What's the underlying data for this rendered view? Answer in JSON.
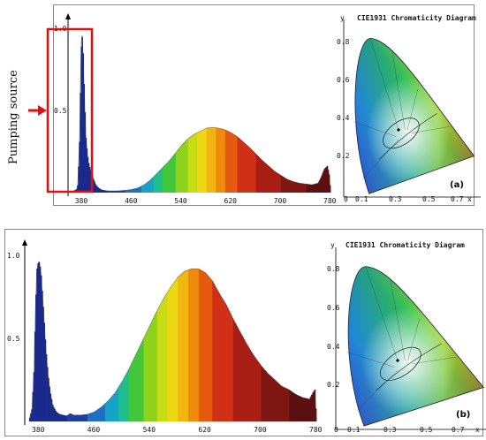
{
  "side_label": "Pumping source",
  "colors": {
    "pump_box": "#e01010",
    "arrow": "#e01010",
    "pump_band": "#1b2a8c"
  },
  "chart_data": [
    {
      "type": "area",
      "panel": "(a)",
      "x_ticks": [
        380,
        460,
        540,
        620,
        700,
        780
      ],
      "y_ticks": [
        "1.0",
        "0.5"
      ],
      "xlim": [
        366,
        780
      ],
      "ylim": [
        0,
        1.05
      ],
      "series": [
        {
          "x": [
            366,
            371,
            373,
            374,
            376,
            377,
            378,
            379,
            380,
            381,
            382,
            383,
            385,
            386,
            388,
            390,
            393,
            396,
            398,
            400,
            402,
            405,
            410,
            415,
            420,
            430,
            440,
            450,
            460,
            470,
            480,
            490,
            500,
            510,
            520,
            530,
            540,
            550,
            560,
            570,
            580,
            590,
            600,
            610,
            620,
            630,
            640,
            650,
            660,
            670,
            680,
            690,
            700,
            710,
            720,
            730,
            740,
            750,
            760,
            765,
            770,
            775,
            778,
            780
          ],
          "y": [
            0.01,
            0.02,
            0.05,
            0.14,
            0.35,
            0.58,
            0.8,
            0.97,
            1.0,
            0.96,
            0.86,
            0.72,
            0.48,
            0.36,
            0.27,
            0.2,
            0.15,
            0.12,
            0.09,
            0.07,
            0.05,
            0.035,
            0.02,
            0.015,
            0.012,
            0.011,
            0.012,
            0.015,
            0.02,
            0.03,
            0.05,
            0.08,
            0.12,
            0.16,
            0.2,
            0.25,
            0.3,
            0.34,
            0.37,
            0.39,
            0.41,
            0.415,
            0.41,
            0.4,
            0.38,
            0.355,
            0.32,
            0.285,
            0.245,
            0.205,
            0.17,
            0.135,
            0.11,
            0.085,
            0.07,
            0.06,
            0.055,
            0.05,
            0.06,
            0.1,
            0.15,
            0.17,
            0.11,
            0.01
          ]
        }
      ],
      "annotation": "Pumping source"
    },
    {
      "type": "area",
      "panel": "(b)",
      "x_ticks": [
        380,
        460,
        540,
        620,
        700,
        780
      ],
      "y_ticks": [
        "1.0",
        "0.5"
      ],
      "xlim": [
        366,
        780
      ],
      "ylim": [
        0,
        1.05
      ],
      "series": [
        {
          "x": [
            366,
            370,
            373,
            375,
            377,
            379,
            380,
            381,
            383,
            385,
            388,
            390,
            393,
            396,
            400,
            405,
            410,
            415,
            420,
            425,
            430,
            440,
            450,
            460,
            470,
            480,
            490,
            500,
            510,
            520,
            530,
            540,
            550,
            560,
            570,
            580,
            590,
            600,
            610,
            620,
            630,
            640,
            650,
            660,
            670,
            680,
            690,
            700,
            710,
            720,
            730,
            740,
            750,
            760,
            770,
            775,
            778,
            780
          ],
          "y": [
            0.01,
            0.08,
            0.33,
            0.7,
            0.95,
            0.995,
            1.0,
            0.99,
            0.93,
            0.8,
            0.6,
            0.46,
            0.3,
            0.19,
            0.1,
            0.06,
            0.045,
            0.04,
            0.035,
            0.05,
            0.04,
            0.04,
            0.045,
            0.06,
            0.09,
            0.13,
            0.18,
            0.25,
            0.33,
            0.42,
            0.51,
            0.6,
            0.69,
            0.77,
            0.84,
            0.9,
            0.94,
            0.955,
            0.955,
            0.93,
            0.88,
            0.8,
            0.73,
            0.64,
            0.56,
            0.48,
            0.41,
            0.35,
            0.3,
            0.26,
            0.22,
            0.2,
            0.17,
            0.15,
            0.14,
            0.18,
            0.2,
            0.01
          ]
        }
      ]
    }
  ],
  "cie": [
    {
      "title": "CIE1931 Chromaticity Diagram",
      "y_axis_label": "y",
      "x_axis_label": "x",
      "y_ticks": [
        "0.8",
        "0.6",
        "0.4",
        "0.2"
      ],
      "x_ticks": [
        "0.1",
        "0.3",
        "0.5",
        "0.7"
      ],
      "zero_label": "0",
      "tag": "(a)"
    },
    {
      "title": "CIE1931 Chromaticity Diagram",
      "y_axis_label": "y",
      "x_axis_label": "x",
      "y_ticks": [
        "0.8",
        "0.6",
        "0.4",
        "0.2"
      ],
      "x_ticks": [
        "0.1",
        "0.3",
        "0.5",
        "0.7"
      ],
      "zero_label": "0",
      "tag": "(b)"
    }
  ]
}
